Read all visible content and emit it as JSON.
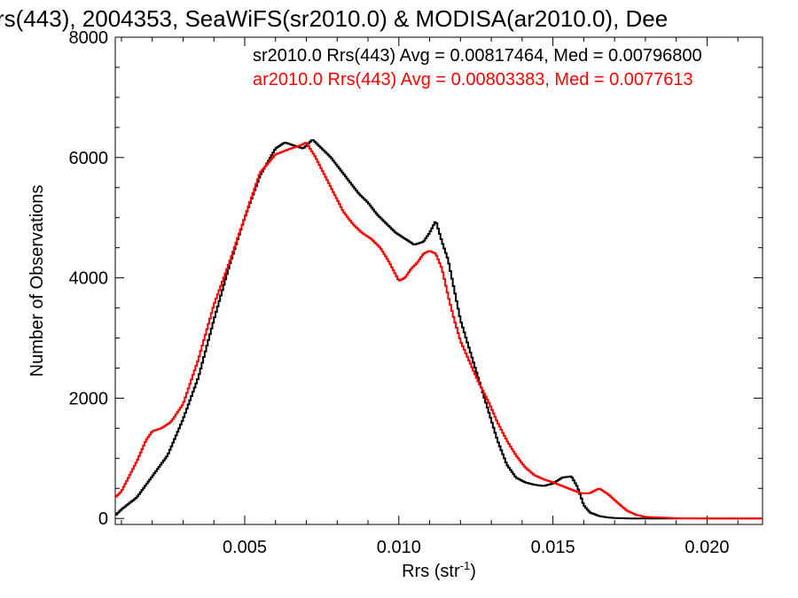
{
  "chart_data": {
    "type": "line",
    "title": "rs(443), 2004353, SeaWiFS(sr2010.0) & MODISA(ar2010.0), Dee",
    "xlabel": "Rrs (str",
    "xlabel_sup": "-1",
    "xlabel_close": ")",
    "ylabel": "Number of Observations",
    "xlim": [
      0.0008,
      0.0218
    ],
    "ylim": [
      -100,
      8000
    ],
    "xticks": [
      0.005,
      0.01,
      0.015,
      0.02
    ],
    "xtick_labels": [
      "0.005",
      "0.010",
      "0.015",
      "0.020"
    ],
    "yticks": [
      0,
      2000,
      4000,
      6000,
      8000
    ],
    "ytick_labels": [
      "0",
      "2000",
      "4000",
      "6000",
      "8000"
    ],
    "grid": false,
    "legend_placement": "top-right",
    "series": [
      {
        "name": "sr2010.0 Rrs(443) Avg = 0.00817464, Med = 0.00796800",
        "color": "#000000",
        "x": [
          0.0008,
          0.001,
          0.0015,
          0.002,
          0.0025,
          0.003,
          0.0035,
          0.004,
          0.0045,
          0.005,
          0.0055,
          0.006,
          0.0063,
          0.0066,
          0.0069,
          0.0072,
          0.0075,
          0.0078,
          0.0081,
          0.0084,
          0.0087,
          0.009,
          0.0093,
          0.0096,
          0.0099,
          0.0102,
          0.0105,
          0.0108,
          0.011,
          0.0112,
          0.0114,
          0.0116,
          0.0118,
          0.012,
          0.0123,
          0.0126,
          0.0129,
          0.0132,
          0.0135,
          0.0138,
          0.0141,
          0.0144,
          0.0147,
          0.015,
          0.0153,
          0.0156,
          0.0158,
          0.016,
          0.0162,
          0.0165,
          0.0168,
          0.0171,
          0.0175,
          0.018,
          0.019,
          0.02,
          0.021,
          0.0218
        ],
        "y": [
          50,
          150,
          350,
          700,
          1050,
          1650,
          2350,
          3300,
          4200,
          5000,
          5700,
          6150,
          6250,
          6200,
          6150,
          6300,
          6150,
          6000,
          5800,
          5600,
          5400,
          5250,
          5050,
          4900,
          4750,
          4650,
          4550,
          4600,
          4750,
          4950,
          4600,
          4300,
          3800,
          3300,
          2800,
          2300,
          1800,
          1300,
          900,
          680,
          600,
          560,
          540,
          580,
          680,
          700,
          520,
          220,
          100,
          40,
          15,
          5,
          0,
          0,
          0,
          0,
          0,
          0
        ]
      },
      {
        "name": "ar2010.0 Rrs(443) Avg = 0.00803383, Med = 0.0077613",
        "color": "#ff0000",
        "x": [
          0.0008,
          0.001,
          0.0015,
          0.0018,
          0.002,
          0.0023,
          0.0026,
          0.003,
          0.0035,
          0.004,
          0.0045,
          0.005,
          0.0055,
          0.006,
          0.0065,
          0.0068,
          0.007,
          0.0073,
          0.0076,
          0.0079,
          0.0082,
          0.0085,
          0.0088,
          0.0091,
          0.0094,
          0.0097,
          0.01,
          0.0102,
          0.0104,
          0.0106,
          0.0108,
          0.011,
          0.0112,
          0.0114,
          0.0116,
          0.0118,
          0.012,
          0.0123,
          0.0126,
          0.0129,
          0.0132,
          0.0135,
          0.0138,
          0.0141,
          0.0144,
          0.0147,
          0.015,
          0.0153,
          0.0156,
          0.0159,
          0.0162,
          0.0165,
          0.0168,
          0.0171,
          0.0174,
          0.0177,
          0.018,
          0.019,
          0.02,
          0.021,
          0.0218
        ],
        "y": [
          350,
          450,
          950,
          1300,
          1450,
          1500,
          1600,
          1900,
          2650,
          3550,
          4250,
          5000,
          5750,
          6050,
          6150,
          6200,
          6250,
          6000,
          5700,
          5400,
          5100,
          4900,
          4750,
          4650,
          4500,
          4250,
          3950,
          4000,
          4150,
          4250,
          4400,
          4450,
          4400,
          4150,
          3700,
          3300,
          2950,
          2600,
          2250,
          1950,
          1600,
          1300,
          1050,
          850,
          720,
          650,
          600,
          540,
          480,
          420,
          420,
          500,
          400,
          260,
          130,
          60,
          25,
          5,
          0,
          0,
          0
        ]
      }
    ]
  }
}
